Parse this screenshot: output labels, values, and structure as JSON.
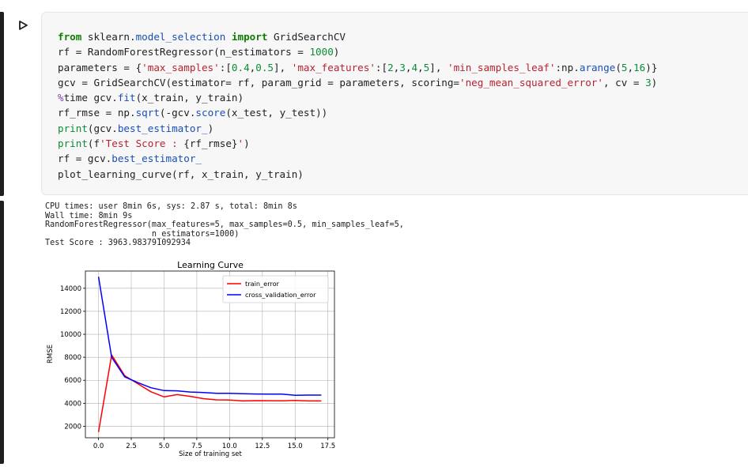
{
  "cell": {
    "run_button_icon": "play-icon",
    "code_lines": [
      [
        {
          "t": "from",
          "c": "kw"
        },
        {
          "t": " sklearn."
        },
        {
          "t": "model_selection",
          "c": "fn"
        },
        {
          "t": " "
        },
        {
          "t": "import",
          "c": "kw"
        },
        {
          "t": " GridSearchCV"
        }
      ],
      [
        {
          "t": "rf = RandomForestRegressor(n_estimators = "
        },
        {
          "t": "1000",
          "c": "num"
        },
        {
          "t": ")"
        }
      ],
      [
        {
          "t": "parameters = {"
        },
        {
          "t": "'max_samples'",
          "c": "str"
        },
        {
          "t": ":["
        },
        {
          "t": "0.4",
          "c": "num"
        },
        {
          "t": ","
        },
        {
          "t": "0.5",
          "c": "num"
        },
        {
          "t": "], "
        },
        {
          "t": "'max_features'",
          "c": "str"
        },
        {
          "t": ":["
        },
        {
          "t": "2",
          "c": "num"
        },
        {
          "t": ","
        },
        {
          "t": "3",
          "c": "num"
        },
        {
          "t": ","
        },
        {
          "t": "4",
          "c": "num"
        },
        {
          "t": ","
        },
        {
          "t": "5",
          "c": "num"
        },
        {
          "t": "], "
        },
        {
          "t": "'min_samples_leaf'",
          "c": "str"
        },
        {
          "t": ":np."
        },
        {
          "t": "arange",
          "c": "fn"
        },
        {
          "t": "("
        },
        {
          "t": "5",
          "c": "num"
        },
        {
          "t": ","
        },
        {
          "t": "16",
          "c": "num"
        },
        {
          "t": ")}"
        }
      ],
      [
        {
          "t": "gcv = GridSearchCV(estimator= rf, param_grid = parameters, scoring="
        },
        {
          "t": "'neg_mean_squared_error'",
          "c": "str"
        },
        {
          "t": ", cv = "
        },
        {
          "t": "3",
          "c": "num"
        },
        {
          "t": ")"
        }
      ],
      [
        {
          "t": "%",
          "c": "op"
        },
        {
          "t": "time gcv."
        },
        {
          "t": "fit",
          "c": "fn"
        },
        {
          "t": "(x_train, y_train)"
        }
      ],
      [
        {
          "t": "rf_rmse = np."
        },
        {
          "t": "sqrt",
          "c": "fn"
        },
        {
          "t": "(-gcv."
        },
        {
          "t": "score",
          "c": "fn"
        },
        {
          "t": "(x_test, y_test))"
        }
      ],
      [
        {
          "t": "print",
          "c": "num"
        },
        {
          "t": "(gcv."
        },
        {
          "t": "best_estimator_",
          "c": "fn"
        },
        {
          "t": ")"
        }
      ],
      [
        {
          "t": "print",
          "c": "num"
        },
        {
          "t": "(f"
        },
        {
          "t": "'Test Score : ",
          "c": "str"
        },
        {
          "t": "{rf_rmse}"
        },
        {
          "t": "'",
          "c": "str"
        },
        {
          "t": ")"
        }
      ],
      [
        {
          "t": "rf = gcv."
        },
        {
          "t": "best_estimator_",
          "c": "fn"
        }
      ],
      [
        {
          "t": "plot_learning_curve(rf, x_train, y_train)"
        }
      ]
    ]
  },
  "output": {
    "text": "CPU times: user 8min 6s, sys: 2.87 s, total: 8min 8s\nWall time: 8min 9s\nRandomForestRegressor(max_features=5, max_samples=0.5, min_samples_leaf=5,\n                      n_estimators=1000)\nTest Score : 3963.983791092934"
  },
  "chart_data": {
    "type": "line",
    "title": "Learning Curve",
    "xlabel": "Size of training set",
    "ylabel": "RMSE",
    "xlim": [
      -1,
      18
    ],
    "ylim": [
      1000,
      15500
    ],
    "xticks": [
      "0.0",
      "2.5",
      "5.0",
      "7.5",
      "10.0",
      "12.5",
      "15.0",
      "17.5"
    ],
    "yticks": [
      "2000",
      "4000",
      "6000",
      "8000",
      "10000",
      "12000",
      "14000"
    ],
    "grid": true,
    "legend_position": "upper right",
    "x": [
      0,
      1,
      2,
      3,
      4,
      5,
      6,
      7,
      8,
      9,
      10,
      11,
      12,
      13,
      14,
      15,
      16,
      17
    ],
    "series": [
      {
        "name": "train_error",
        "color": "#ff0000",
        "values": [
          1500,
          8200,
          6400,
          5700,
          5000,
          4550,
          4750,
          4600,
          4400,
          4300,
          4280,
          4200,
          4230,
          4220,
          4210,
          4250,
          4200,
          4200
        ]
      },
      {
        "name": "cross_validation_error",
        "color": "#0000ff",
        "values": [
          15000,
          8000,
          6300,
          5800,
          5350,
          5100,
          5080,
          4980,
          4940,
          4870,
          4860,
          4830,
          4810,
          4800,
          4790,
          4700,
          4710,
          4710
        ]
      }
    ]
  }
}
